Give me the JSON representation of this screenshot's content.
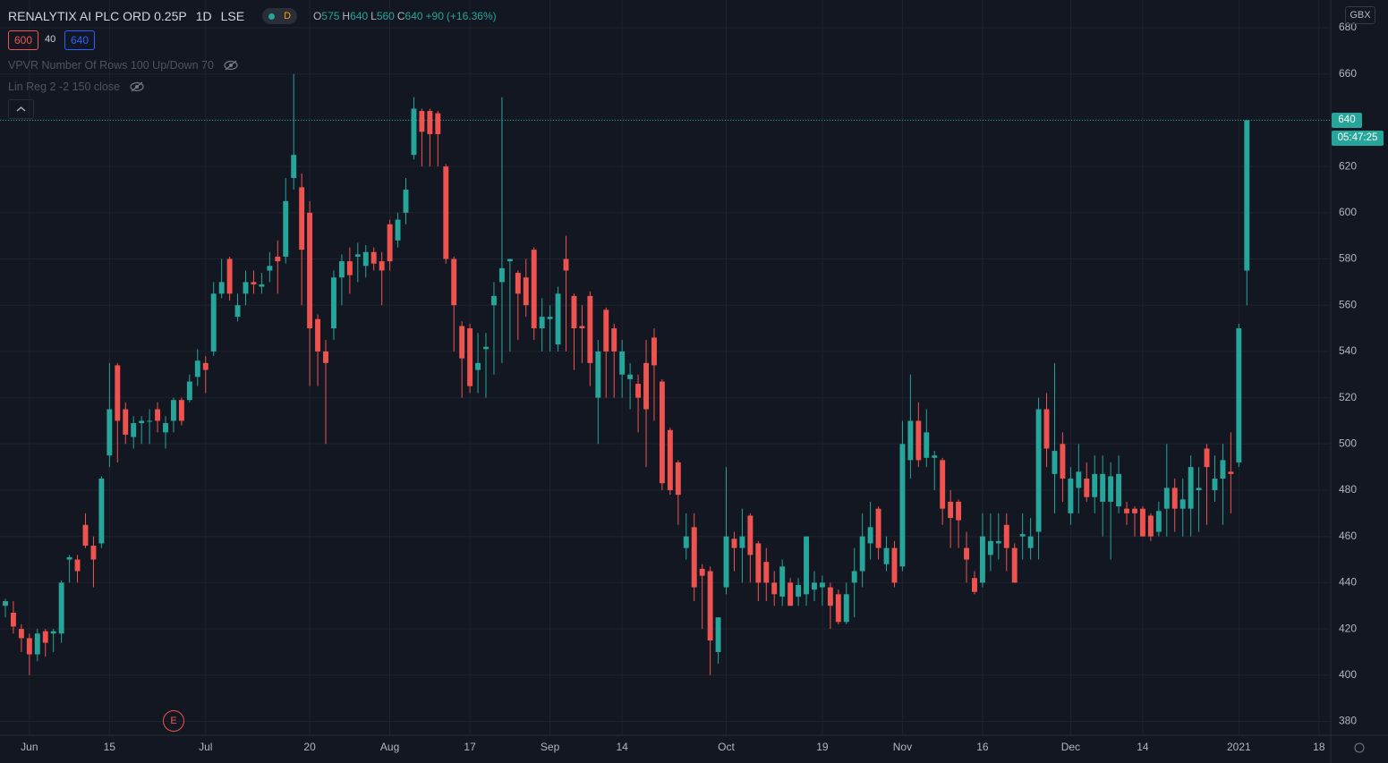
{
  "chart_data": {
    "type": "candlestick",
    "title": "RENALYTIX AI PLC ORD 0.25P",
    "interval": "1D",
    "exchange": "LSE",
    "session_badge": "D",
    "legend": [
      {
        "label": "O",
        "value": 575
      },
      {
        "label": "H",
        "value": 640
      },
      {
        "label": "L",
        "value": 560
      },
      {
        "label": "C",
        "value": 640
      }
    ],
    "change": {
      "value": 90,
      "label": "+90"
    },
    "change_pct": {
      "value": 16.36,
      "label": "(+16.36%)"
    },
    "bid": 600,
    "spread": 40,
    "ask": 640,
    "indicators": [
      "VPVR Number Of Rows 100 Up/Down 70",
      "Lin Reg 2 -2 150 close"
    ],
    "currency": "GBX",
    "last_price": 640,
    "countdown": "05:47:25",
    "event_marker": "E",
    "up_color": "#26a69a",
    "down_color": "#ef5350",
    "grid": true,
    "ylim": [
      374,
      692
    ],
    "yticks": [
      380,
      400,
      420,
      440,
      460,
      480,
      500,
      520,
      540,
      560,
      580,
      600,
      620,
      640,
      660,
      680
    ],
    "xlim": [
      -0.67,
      165.47
    ],
    "xticks": [
      {
        "value": 3,
        "label": "Jun"
      },
      {
        "value": 13,
        "label": "15"
      },
      {
        "value": 25,
        "label": "Jul"
      },
      {
        "value": 38,
        "label": "20"
      },
      {
        "value": 48,
        "label": "Aug"
      },
      {
        "value": 58,
        "label": "17"
      },
      {
        "value": 68,
        "label": "Sep"
      },
      {
        "value": 77,
        "label": "14"
      },
      {
        "value": 90,
        "label": "Oct"
      },
      {
        "value": 102,
        "label": "19"
      },
      {
        "value": 112,
        "label": "Nov"
      },
      {
        "value": 122,
        "label": "16"
      },
      {
        "value": 133,
        "label": "Dec"
      },
      {
        "value": 142,
        "label": "14"
      },
      {
        "value": 154,
        "label": "2021"
      },
      {
        "value": 164,
        "label": "18"
      }
    ],
    "open": [
      430,
      427,
      420,
      416,
      409,
      419,
      418,
      418,
      450,
      450,
      465,
      456,
      457,
      495,
      534,
      515,
      503,
      509,
      510,
      515,
      505,
      510,
      519,
      519,
      529,
      535,
      540,
      565,
      580,
      555,
      565,
      570,
      568,
      575,
      581,
      581,
      615,
      611,
      600,
      554,
      540,
      550,
      572,
      579,
      581,
      577,
      583,
      579,
      595,
      588,
      600,
      625,
      644,
      644,
      643,
      620,
      580,
      551,
      550,
      532,
      541,
      560,
      570,
      579,
      574,
      572,
      584,
      550,
      554,
      543,
      580,
      564,
      551,
      564,
      520,
      558,
      550,
      530,
      528,
      526,
      535,
      546,
      527,
      506,
      492,
      455,
      464,
      446,
      445,
      410,
      438,
      459,
      455,
      469,
      457,
      449,
      440,
      434,
      440,
      434,
      435,
      437,
      438,
      438,
      435,
      423,
      440,
      445,
      457,
      472,
      448,
      455,
      447,
      493,
      510,
      494,
      494,
      493,
      475,
      475,
      455,
      442,
      440,
      452,
      457,
      465,
      455,
      460,
      455,
      462,
      515,
      487,
      500,
      470,
      481,
      485,
      477,
      475,
      475,
      473,
      472,
      472,
      472,
      469,
      462,
      472,
      481,
      472,
      472,
      480,
      498,
      480,
      485,
      488,
      492,
      575
    ],
    "high": [
      433,
      432,
      422,
      418,
      420,
      420,
      420,
      441,
      452,
      452,
      470,
      460,
      486,
      535,
      535,
      518,
      512,
      512,
      515,
      518,
      512,
      520,
      520,
      530,
      541,
      538,
      570,
      580,
      581,
      565,
      575,
      575,
      574,
      583,
      588,
      615,
      660,
      617,
      605,
      556,
      545,
      575,
      582,
      585,
      587,
      586,
      585,
      583,
      597,
      600,
      615,
      650,
      645,
      645,
      644,
      621,
      581,
      553,
      552,
      548,
      548,
      570,
      650,
      580,
      575,
      580,
      585,
      563,
      560,
      568,
      590,
      565,
      560,
      566,
      545,
      559,
      552,
      545,
      535,
      530,
      545,
      550,
      528,
      507,
      493,
      470,
      470,
      448,
      447,
      425,
      490,
      462,
      472,
      470,
      458,
      455,
      445,
      450,
      442,
      442,
      460,
      445,
      443,
      440,
      437,
      440,
      455,
      470,
      475,
      473,
      460,
      458,
      510,
      530,
      518,
      515,
      497,
      494,
      480,
      476,
      462,
      445,
      470,
      470,
      470,
      470,
      457,
      470,
      468,
      520,
      522,
      535,
      505,
      490,
      500,
      492,
      495,
      495,
      492,
      495,
      475,
      473,
      473,
      470,
      475,
      500,
      485,
      485,
      495,
      490,
      500,
      495,
      500,
      505,
      552,
      640
    ],
    "low": [
      425,
      418,
      410,
      400,
      406,
      408,
      410,
      414,
      440,
      440,
      455,
      438,
      455,
      490,
      492,
      500,
      498,
      500,
      500,
      505,
      498,
      505,
      508,
      518,
      525,
      522,
      538,
      563,
      562,
      553,
      560,
      565,
      565,
      570,
      565,
      578,
      610,
      560,
      525,
      525,
      500,
      545,
      560,
      565,
      570,
      572,
      575,
      560,
      575,
      585,
      595,
      623,
      620,
      620,
      620,
      578,
      540,
      520,
      522,
      522,
      520,
      530,
      535,
      540,
      545,
      555,
      545,
      540,
      540,
      540,
      540,
      532,
      535,
      525,
      500,
      520,
      520,
      520,
      515,
      505,
      490,
      510,
      480,
      478,
      465,
      450,
      432,
      420,
      400,
      405,
      435,
      445,
      440,
      440,
      432,
      432,
      430,
      430,
      430,
      430,
      430,
      432,
      430,
      420,
      422,
      422,
      425,
      438,
      450,
      450,
      445,
      438,
      445,
      485,
      490,
      490,
      480,
      465,
      455,
      455,
      440,
      435,
      438,
      445,
      450,
      445,
      440,
      450,
      450,
      450,
      490,
      470,
      475,
      465,
      470,
      475,
      470,
      460,
      450,
      470,
      465,
      460,
      460,
      458,
      460,
      460,
      462,
      460,
      460,
      462,
      465,
      475,
      465,
      470,
      490,
      560
    ],
    "close": [
      432,
      421,
      416,
      409,
      418,
      414,
      419,
      440,
      451,
      445,
      456,
      450,
      485,
      515,
      510,
      504,
      509,
      510,
      510,
      510,
      509,
      519,
      510,
      527,
      536,
      532,
      565,
      570,
      565,
      560,
      570,
      569,
      569,
      577,
      579,
      605,
      625,
      584,
      550,
      540,
      535,
      572,
      579,
      573,
      582,
      583,
      578,
      575,
      579,
      597,
      610,
      645,
      635,
      634,
      634,
      580,
      560,
      537,
      525,
      535,
      542,
      564,
      576,
      580,
      565,
      560,
      550,
      555,
      555,
      565,
      575,
      550,
      550,
      535,
      540,
      540,
      540,
      540,
      530,
      520,
      515,
      534,
      483,
      480,
      478,
      460,
      438,
      443,
      415,
      425,
      460,
      455,
      460,
      452,
      440,
      440,
      435,
      447,
      430,
      439,
      460,
      440,
      440,
      430,
      423,
      435,
      445,
      460,
      464,
      455,
      455,
      440,
      500,
      510,
      493,
      505,
      495,
      472,
      468,
      467,
      450,
      436,
      460,
      458,
      458,
      455,
      440,
      461,
      460,
      515,
      498,
      497,
      485,
      485,
      488,
      477,
      487,
      487,
      486,
      487,
      470,
      470,
      460,
      460,
      471,
      481,
      472,
      476,
      490,
      481,
      490,
      485,
      493,
      487,
      550,
      640
    ]
  }
}
